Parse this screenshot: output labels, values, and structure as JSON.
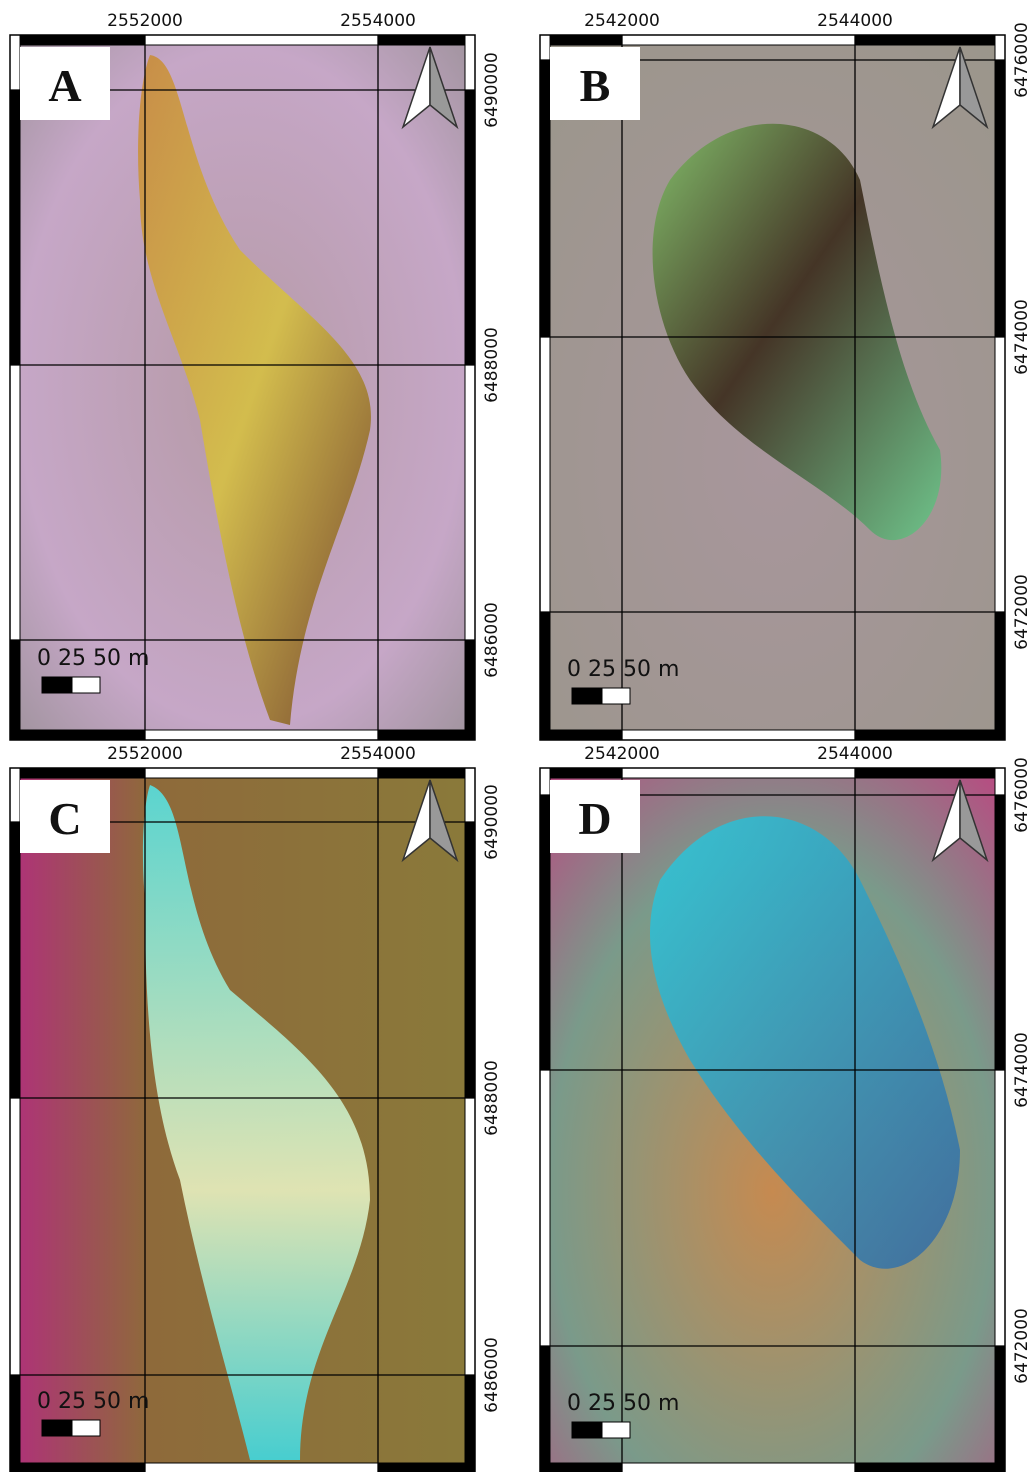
{
  "panels": [
    {
      "label": "A",
      "x_labels": [
        "2552000",
        "2554000"
      ],
      "y_labels": [
        "6490000",
        "6488000",
        "6486000"
      ],
      "scale_label": "0 25 50 m"
    },
    {
      "label": "B",
      "x_labels": [
        "2542000",
        "2544000"
      ],
      "y_labels": [
        "6476000",
        "6474000",
        "6472000"
      ],
      "scale_label": "0 25 50 m"
    },
    {
      "label": "C",
      "x_labels": [
        "2552000",
        "2554000"
      ],
      "y_labels": [
        "6490000",
        "6488000",
        "6486000"
      ],
      "scale_label": "0 25 50 m"
    },
    {
      "label": "D",
      "x_labels": [
        "2542000",
        "2544000"
      ],
      "y_labels": [
        "6476000",
        "6474000",
        "6472000"
      ],
      "scale_label": "0 25 50 m"
    }
  ]
}
